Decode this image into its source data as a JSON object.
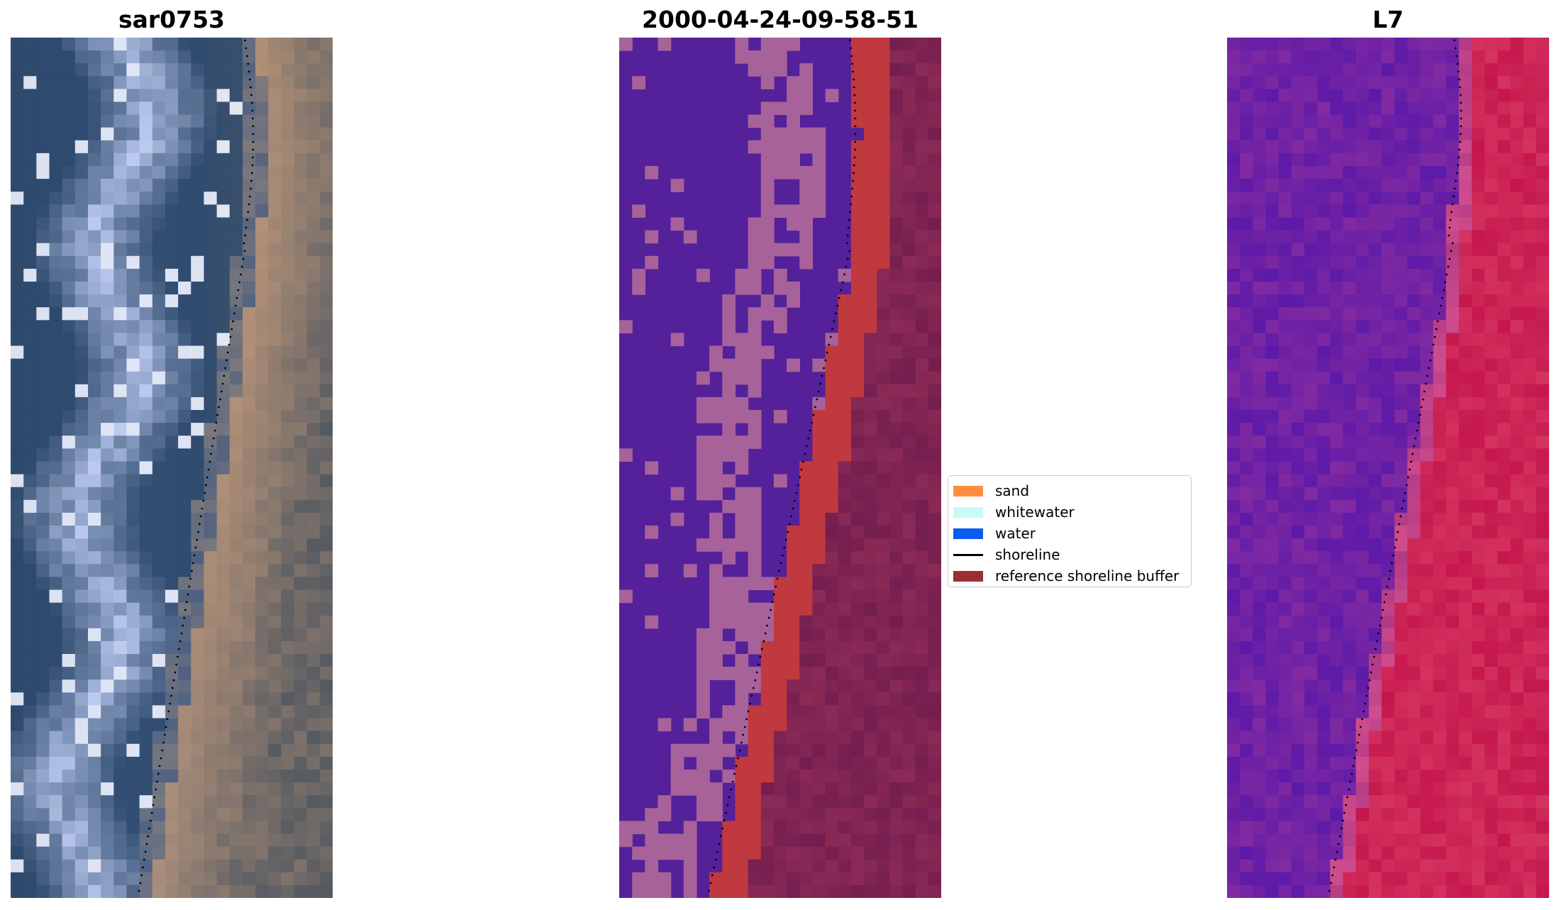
{
  "panels": [
    {
      "title": "sar0753"
    },
    {
      "title": "2000-04-24-09-58-51"
    },
    {
      "title": "L7"
    }
  ],
  "legend": {
    "items": [
      {
        "label": "sand",
        "kind": "patch",
        "color": "#ff8c3f"
      },
      {
        "label": "whitewater",
        "kind": "patch",
        "color": "#c8fbf7"
      },
      {
        "label": "water",
        "kind": "patch",
        "color": "#0a5cf0"
      },
      {
        "label": "shoreline",
        "kind": "line",
        "color": "#000000"
      },
      {
        "label": "reference shoreline buffer",
        "kind": "patch",
        "color": "#9c2f34"
      }
    ]
  },
  "colors": {
    "class_water": "#54219a",
    "class_land": "#a8629a",
    "class_sand_buffer": "#c0393f",
    "class_dune": "#8c2a55",
    "rgb_water": "#2f4a6e",
    "rgb_whitewater": "#b9c8f3",
    "rgb_sand": "#b28d72",
    "ndwi_water": "#6e1ca5",
    "ndwi_land": "#cf1b4f"
  }
}
